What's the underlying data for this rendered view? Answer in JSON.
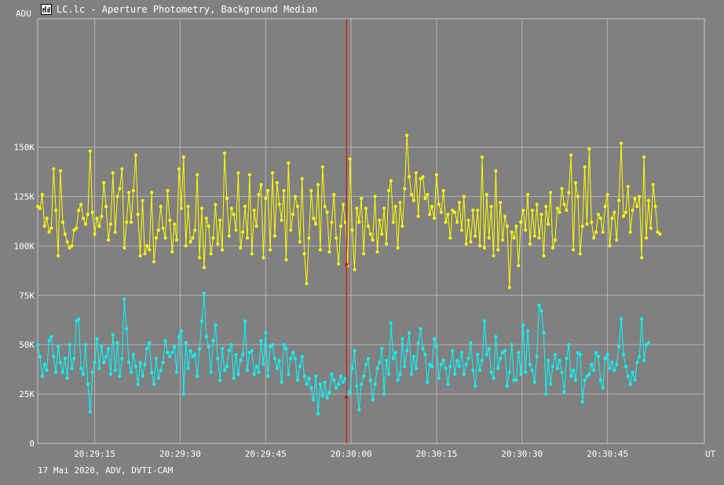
{
  "window": {
    "title": "LC.lc - Aperture Photometry, Background Median",
    "footer": "17 Mai 2020, ADV, DVTI-CAM"
  },
  "icons": {
    "title": "light-curve-app-icon"
  },
  "colors": {
    "background": "#808080",
    "grid": "#b4b4b4",
    "series1": "#ffff00",
    "series2": "#00ffff",
    "cursor": "#e00000"
  },
  "chart_data": {
    "type": "line",
    "ylabel": "ADU",
    "xlabel": "UT",
    "ylim": [
      0,
      150000
    ],
    "xlim_seconds_of_day": [
      73745.0,
      73862.0
    ],
    "y_ticks": [
      {
        "value": 0,
        "label": "0"
      },
      {
        "value": 25000,
        "label": "25K"
      },
      {
        "value": 50000,
        "label": "50K"
      },
      {
        "value": 75000,
        "label": "75K"
      },
      {
        "value": 100000,
        "label": "100K"
      },
      {
        "value": 125000,
        "label": "125K"
      },
      {
        "value": 150000,
        "label": "150K"
      }
    ],
    "x_ticks": [
      {
        "value": 73755,
        "label": "20:29:15"
      },
      {
        "value": 73770,
        "label": "20:29:30"
      },
      {
        "value": 73785,
        "label": "20:29:45"
      },
      {
        "value": 73800,
        "label": "20:30:00"
      },
      {
        "value": 73815,
        "label": "20:30:15"
      },
      {
        "value": 73830,
        "label": "20:30:30"
      },
      {
        "value": 73845,
        "label": "20:30:45"
      }
    ],
    "grid": true,
    "cursor": {
      "x": 73799.2,
      "marker_values": [
        90500,
        23500
      ]
    },
    "series": [
      {
        "color": "#ffff00",
        "x_start": 73745.0,
        "x_step": 0.4,
        "values": [
          120000,
          119000,
          126000,
          110000,
          114000,
          107000,
          109000,
          139000,
          118000,
          95000,
          138000,
          112000,
          106000,
          102000,
          99000,
          100000,
          108000,
          109000,
          118000,
          121000,
          114000,
          111000,
          116000,
          148000,
          117000,
          106000,
          114000,
          110000,
          115000,
          132000,
          120000,
          103000,
          111000,
          137000,
          107000,
          125000,
          129000,
          139000,
          99000,
          112000,
          127000,
          112000,
          128000,
          146000,
          116000,
          95000,
          123000,
          96000,
          100000,
          98000,
          127000,
          92000,
          104000,
          108000,
          120000,
          109000,
          104000,
          128000,
          113000,
          97000,
          111000,
          103000,
          139000,
          119000,
          145000,
          100000,
          120000,
          102000,
          104000,
          108000,
          136000,
          94000,
          119000,
          89000,
          114000,
          110000,
          96000,
          104000,
          121000,
          101000,
          113000,
          98000,
          147000,
          124000,
          105000,
          119000,
          116000,
          108000,
          137000,
          99000,
          107000,
          120000,
          104000,
          136000,
          96000,
          118000,
          110000,
          126000,
          131000,
          94000,
          124000,
          128000,
          98000,
          137000,
          105000,
          132000,
          121000,
          113000,
          128000,
          93000,
          142000,
          108000,
          116000,
          125000,
          120000,
          102000,
          134000,
          96000,
          81000,
          104000,
          128000,
          114000,
          111000,
          131000,
          98000,
          140000,
          120000,
          117000,
          97000,
          112000,
          126000,
          104000,
          91000,
          110000,
          121000,
          112000,
          90000,
          144000,
          108000,
          88000,
          119000,
          112000,
          124000,
          96000,
          119000,
          110000,
          106000,
          103000,
          125000,
          97000,
          113000,
          106000,
          119000,
          101000,
          128000,
          133000,
          112000,
          120000,
          99000,
          122000,
          110000,
          129000,
          156000,
          135000,
          126000,
          123000,
          137000,
          115000,
          134000,
          135000,
          124000,
          126000,
          116000,
          120000,
          114000,
          136000,
          121000,
          117000,
          128000,
          112000,
          116000,
          104000,
          118000,
          117000,
          112000,
          122000,
          108000,
          125000,
          101000,
          113000,
          102000,
          118000,
          105000,
          118000,
          100000,
          145000,
          99000,
          126000,
          104000,
          120000,
          95000,
          138000,
          98000,
          122000,
          103000,
          115000,
          110000,
          79000,
          107000,
          104000,
          110000,
          90000,
          112000,
          118000,
          108000,
          126000,
          101000,
          118000,
          105000,
          121000,
          104000,
          116000,
          95000,
          120000,
          111000,
          127000,
          99000,
          103000,
          119000,
          117000,
          129000,
          121000,
          118000,
          127000,
          146000,
          98000,
          132000,
          125000,
          96000,
          110000,
          140000,
          111000,
          149000,
          112000,
          104000,
          107000,
          116000,
          114000,
          107000,
          120000,
          126000,
          100000,
          114000,
          117000,
          103000,
          123000,
          152000,
          115000,
          117000,
          130000,
          107000,
          118000,
          124000,
          120000,
          125000,
          94000,
          145000,
          104000,
          123000,
          109000,
          131000,
          120000,
          107000,
          106000
        ],
        "outliers": [
          {
            "x": 73799.2,
            "y": 90500
          }
        ]
      },
      {
        "color": "#00ffff",
        "x_start": 73745.0,
        "x_step": 0.4,
        "values": [
          50000,
          44000,
          34000,
          40000,
          37000,
          52000,
          54000,
          44000,
          36000,
          49000,
          41000,
          36000,
          43000,
          33000,
          50000,
          38000,
          43000,
          62000,
          63000,
          38000,
          35000,
          50000,
          30000,
          16000,
          36000,
          41000,
          53000,
          38000,
          49000,
          41000,
          44000,
          48000,
          35000,
          55000,
          37000,
          51000,
          34000,
          43000,
          73000,
          58000,
          41000,
          36000,
          45000,
          39000,
          30000,
          41000,
          34000,
          40000,
          48000,
          51000,
          36000,
          30000,
          43000,
          33000,
          37000,
          41000,
          52000,
          46000,
          44000,
          46000,
          49000,
          36000,
          54000,
          57000,
          25000,
          51000,
          38000,
          47000,
          44000,
          45000,
          34000,
          48000,
          62000,
          76000,
          54000,
          49000,
          36000,
          52000,
          60000,
          43000,
          32000,
          48000,
          37000,
          39000,
          47000,
          50000,
          33000,
          45000,
          35000,
          42000,
          45000,
          62000,
          37000,
          46000,
          47000,
          35000,
          39000,
          36000,
          52000,
          40000,
          56000,
          34000,
          49000,
          50000,
          43000,
          38000,
          42000,
          31000,
          50000,
          48000,
          35000,
          43000,
          46000,
          43000,
          32000,
          39000,
          44000,
          34000,
          30000,
          33000,
          28000,
          22000,
          34000,
          15000,
          30000,
          24000,
          31000,
          23000,
          26000,
          35000,
          32000,
          28000,
          30000,
          34000,
          31000,
          33000,
          24000,
          26000,
          38000,
          47000,
          29000,
          17000,
          30000,
          34000,
          40000,
          43000,
          32000,
          22000,
          30000,
          38000,
          41000,
          48000,
          25000,
          42000,
          35000,
          61000,
          43000,
          46000,
          32000,
          35000,
          53000,
          39000,
          47000,
          56000,
          35000,
          44000,
          38000,
          51000,
          58000,
          48000,
          45000,
          31000,
          40000,
          39000,
          53000,
          49000,
          33000,
          40000,
          42000,
          38000,
          30000,
          39000,
          47000,
          35000,
          42000,
          39000,
          46000,
          35000,
          40000,
          43000,
          51000,
          37000,
          29000,
          45000,
          37000,
          42000,
          62000,
          45000,
          48000,
          36000,
          33000,
          54000,
          38000,
          43000,
          46000,
          47000,
          29000,
          36000,
          50000,
          32000,
          32000,
          46000,
          35000,
          60000,
          36000,
          57000,
          40000,
          37000,
          31000,
          44000,
          70000,
          67000,
          56000,
          25000,
          42000,
          30000,
          39000,
          45000,
          38000,
          42000,
          36000,
          26000,
          43000,
          50000,
          34000,
          37000,
          32000,
          46000,
          45000,
          21000,
          32000,
          34000,
          35000,
          40000,
          37000,
          46000,
          44000,
          32000,
          28000,
          43000,
          45000,
          38000,
          41000,
          37000,
          40000,
          49000,
          63000,
          45000,
          39000,
          34000,
          30000,
          36000,
          32000,
          41000,
          44000,
          63000,
          42000,
          50000,
          51000
        ],
        "outliers": [
          {
            "x": 73799.2,
            "y": 23500
          }
        ]
      }
    ]
  }
}
